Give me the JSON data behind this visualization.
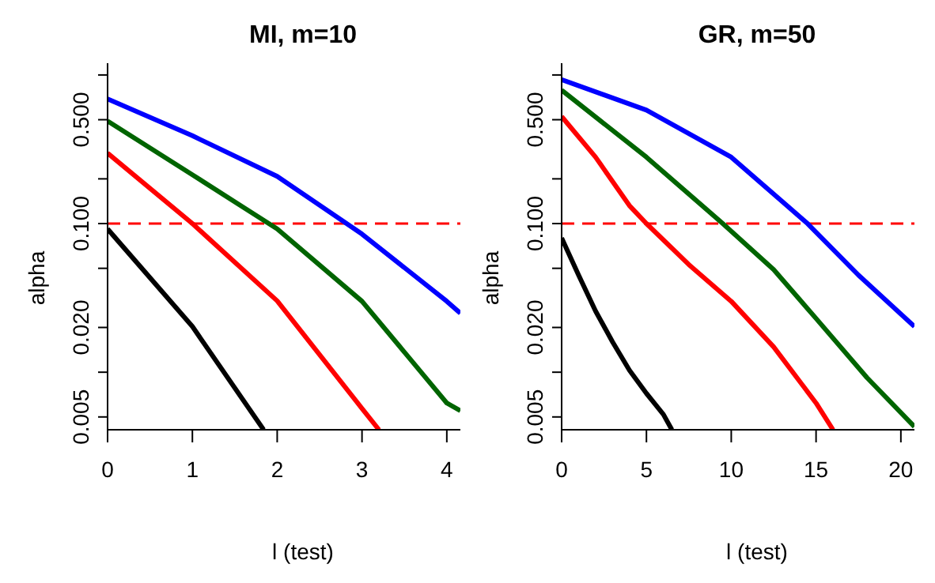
{
  "chart_data": [
    {
      "type": "line",
      "title": "MI, m=10",
      "xlabel": "l (test)",
      "ylabel": "alpha",
      "log": "y",
      "marker": "none",
      "line_style": "solid",
      "grid": false,
      "legend": false,
      "xlim": [
        0,
        4.16
      ],
      "xticks": [
        0,
        1,
        2,
        3,
        4
      ],
      "ylim": [
        0.0041,
        1.2
      ],
      "yticks": [
        {
          "value": 0.005,
          "label": "0.005"
        },
        {
          "value": 0.01,
          "label": null
        },
        {
          "value": 0.02,
          "label": "0.020"
        },
        {
          "value": 0.05,
          "label": null
        },
        {
          "value": 0.1,
          "label": "0.100"
        },
        {
          "value": 0.2,
          "label": null
        },
        {
          "value": 0.5,
          "label": "0.500"
        },
        {
          "value": 1,
          "label": null
        }
      ],
      "ref_lines": [
        {
          "axis": "y",
          "value": 0.1,
          "color": "#ff0000",
          "line_style": "dashed"
        }
      ],
      "series": [
        {
          "color": "#000000",
          "x": [
            0,
            1,
            1.84
          ],
          "values": [
            0.092,
            0.0203,
            0.0041
          ]
        },
        {
          "color": "#ff0000",
          "x": [
            0,
            1,
            2,
            3,
            3.2
          ],
          "values": [
            0.298,
            0.1,
            0.0302,
            0.0057,
            0.0041
          ]
        },
        {
          "color": "#006400",
          "x": [
            0,
            1,
            2,
            3,
            4,
            4.16
          ],
          "values": [
            0.49,
            0.213,
            0.092,
            0.03,
            0.0062,
            0.0055
          ]
        },
        {
          "color": "#0000ff",
          "x": [
            0,
            1,
            2,
            3,
            4,
            4.16
          ],
          "values": [
            0.69,
            0.39,
            0.208,
            0.085,
            0.03,
            0.0249
          ]
        }
      ]
    },
    {
      "type": "line",
      "title": "GR, m=50",
      "xlabel": "l (test)",
      "ylabel": "alpha",
      "log": "y",
      "marker": "none",
      "line_style": "solid",
      "grid": false,
      "legend": false,
      "xlim": [
        0,
        20.8
      ],
      "xticks": [
        0,
        5,
        10,
        15,
        20
      ],
      "ylim": [
        0.0041,
        1.2
      ],
      "yticks": [
        {
          "value": 0.005,
          "label": "0.005"
        },
        {
          "value": 0.01,
          "label": null
        },
        {
          "value": 0.02,
          "label": "0.020"
        },
        {
          "value": 0.05,
          "label": null
        },
        {
          "value": 0.1,
          "label": "0.100"
        },
        {
          "value": 0.2,
          "label": null
        },
        {
          "value": 0.5,
          "label": "0.500"
        },
        {
          "value": 1,
          "label": null
        }
      ],
      "ref_lines": [
        {
          "axis": "y",
          "value": 0.1,
          "color": "#ff0000",
          "line_style": "dashed"
        }
      ],
      "series": [
        {
          "color": "#000000",
          "x": [
            0,
            1,
            2,
            3,
            4,
            5,
            6,
            6.5
          ],
          "values": [
            0.08,
            0.045,
            0.0258,
            0.016,
            0.0103,
            0.0072,
            0.0052,
            0.0041
          ]
        },
        {
          "color": "#ff0000",
          "x": [
            0,
            2,
            4,
            5,
            7.5,
            10,
            12.5,
            15,
            16
          ],
          "values": [
            0.525,
            0.28,
            0.132,
            0.1,
            0.053,
            0.03,
            0.0148,
            0.0062,
            0.0041
          ]
        },
        {
          "color": "#006400",
          "x": [
            0,
            5,
            9.5,
            12.5,
            15,
            18,
            20.8
          ],
          "values": [
            0.79,
            0.28,
            0.1,
            0.049,
            0.023,
            0.0092,
            0.0043
          ]
        },
        {
          "color": "#0000ff",
          "x": [
            0,
            5,
            10,
            14.5,
            17.5,
            20.8
          ],
          "values": [
            0.93,
            0.58,
            0.28,
            0.1,
            0.045,
            0.0203
          ]
        }
      ]
    }
  ]
}
